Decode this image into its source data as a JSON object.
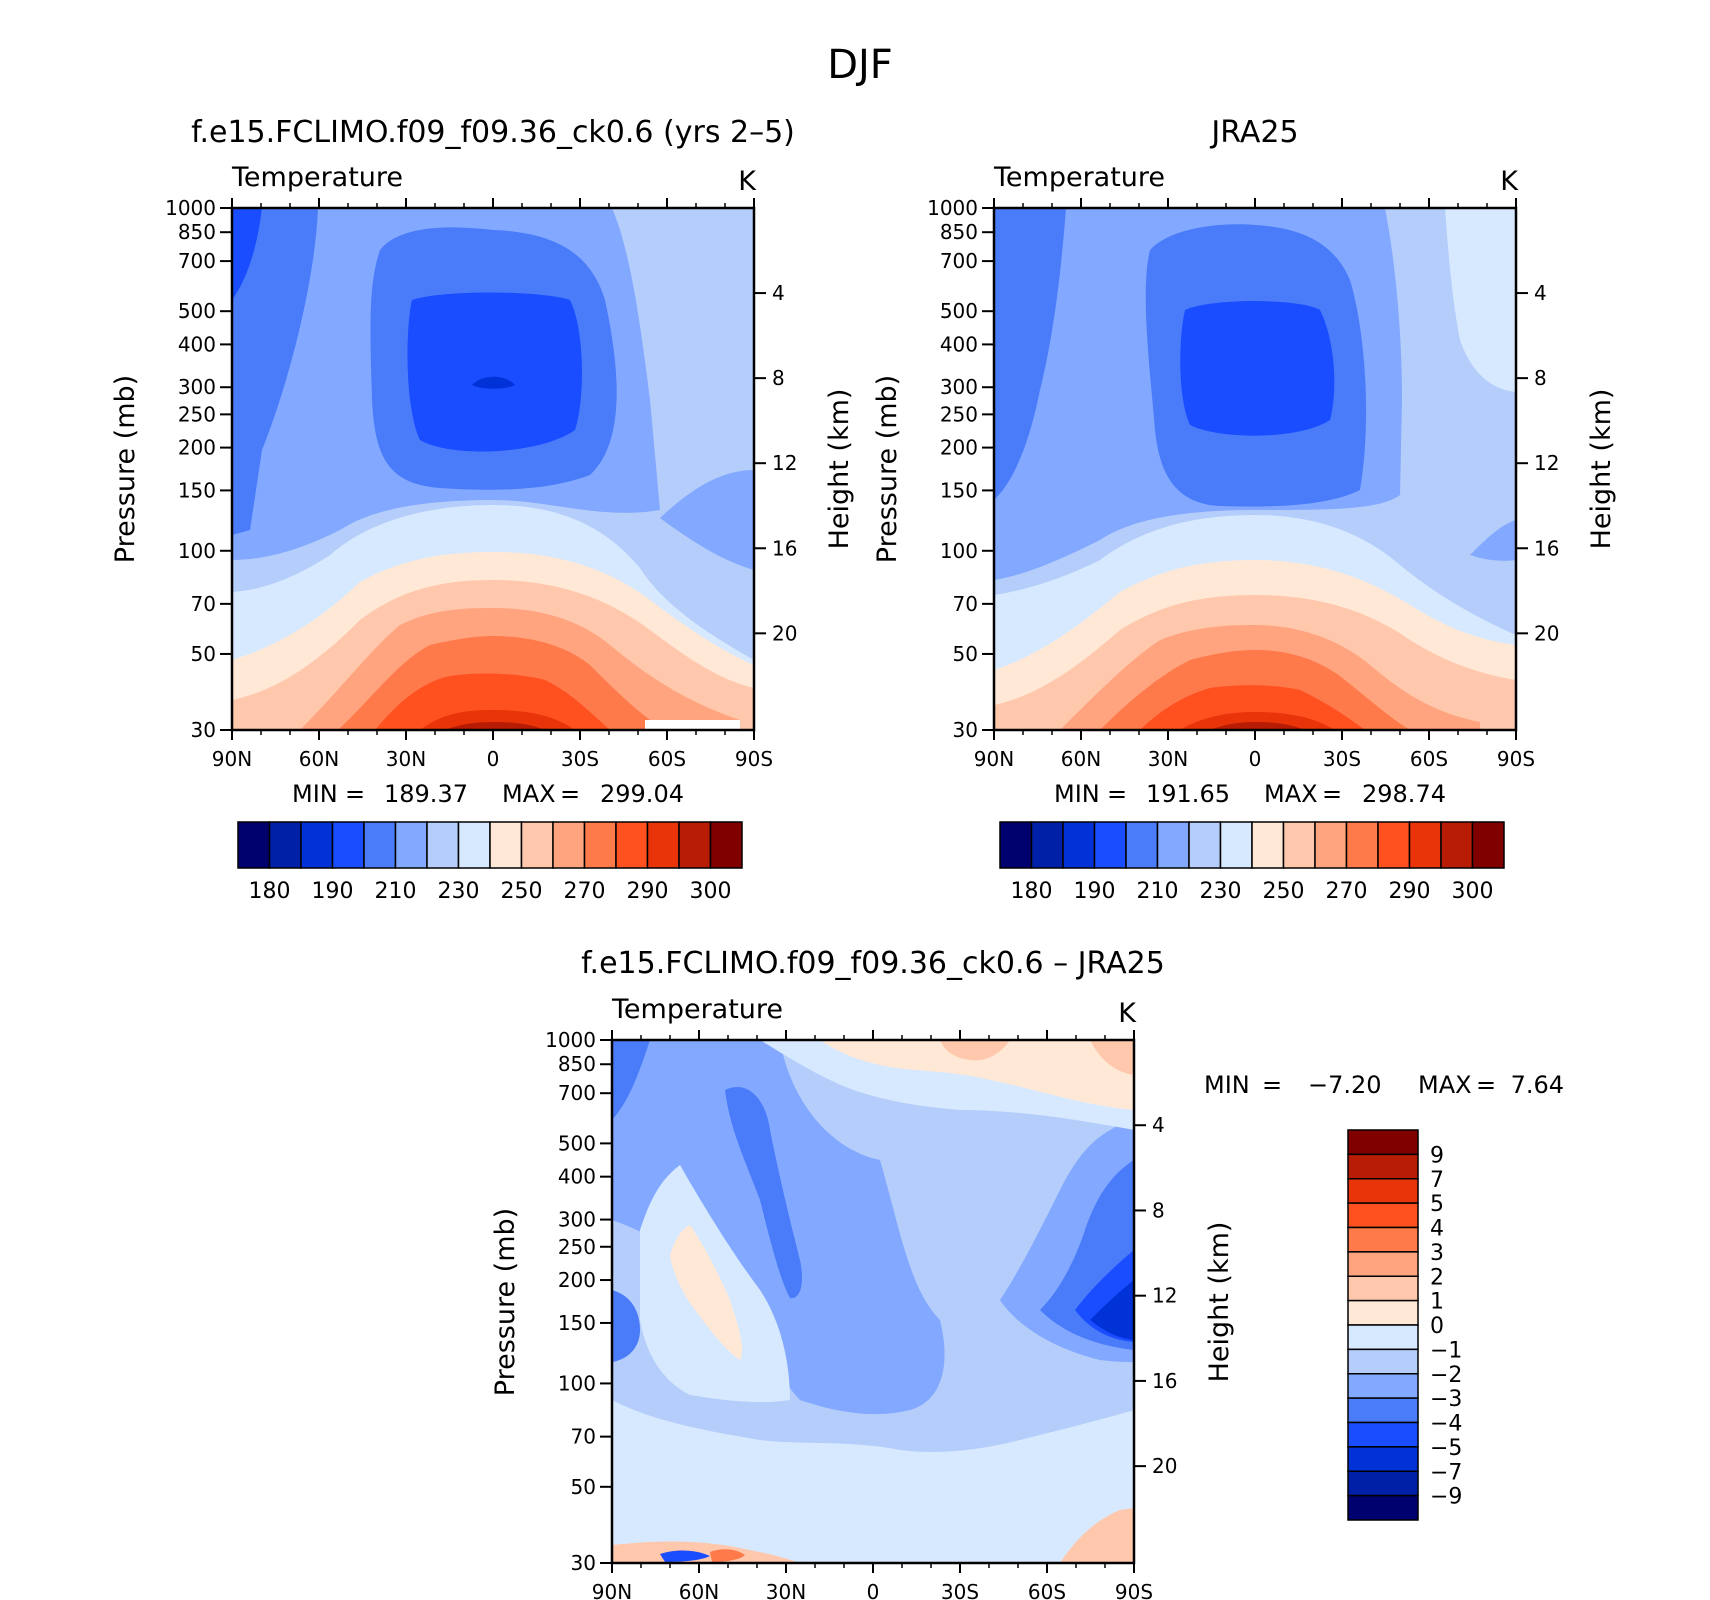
{
  "figure": {
    "title": "DJF"
  },
  "chart_data": [
    {
      "type": "heatmap",
      "title": "f.e15.FCLIMO.f09_f09.36_ck0.6 (yrs 2–5)",
      "variable": "Temperature",
      "units": "K",
      "xlabel": "",
      "ylabel": "Pressure (mb)",
      "y2label": "Height (km)",
      "x_ticks": [
        "90N",
        "60N",
        "30N",
        "0",
        "30S",
        "60S",
        "90S"
      ],
      "x_tick_lat": [
        90,
        60,
        30,
        0,
        -30,
        -60,
        -90
      ],
      "y_ticks": [
        "30",
        "50",
        "70",
        "100",
        "150",
        "200",
        "250",
        "300",
        "400",
        "500",
        "700",
        "850",
        "1000"
      ],
      "y_tick_values": [
        30,
        50,
        70,
        100,
        150,
        200,
        250,
        300,
        400,
        500,
        700,
        850,
        1000
      ],
      "y2_ticks": [
        "20",
        "16",
        "12",
        "8",
        "4"
      ],
      "y2_tick_values": [
        20,
        16,
        12,
        8,
        4
      ],
      "ylim": [
        1000,
        30
      ],
      "yscale": "log",
      "stats": {
        "min_label": "MIN",
        "min": "189.37",
        "max_label": "MAX",
        "max": "299.04"
      },
      "levels": [
        180,
        185,
        190,
        200,
        210,
        220,
        230,
        240,
        250,
        260,
        270,
        280,
        290,
        295,
        300
      ],
      "colorbar_labels": [
        "180",
        "190",
        "210",
        "230",
        "250",
        "270",
        "290",
        "300"
      ],
      "colorbar_orientation": "horizontal",
      "colors": [
        "#00006e",
        "#0020a8",
        "#0032d8",
        "#1a4dff",
        "#4a7cfa",
        "#82a8ff",
        "#b4cdfa",
        "#d7e9ff",
        "#ffe8d6",
        "#ffc8ac",
        "#ffa47e",
        "#ff7a4a",
        "#ff5020",
        "#e83408",
        "#b81c05",
        "#800000"
      ]
    },
    {
      "type": "heatmap",
      "title": "JRA25",
      "variable": "Temperature",
      "units": "K",
      "xlabel": "",
      "ylabel": "Pressure (mb)",
      "y2label": "Height (km)",
      "x_ticks": [
        "90N",
        "60N",
        "30N",
        "0",
        "30S",
        "60S",
        "90S"
      ],
      "x_tick_lat": [
        90,
        60,
        30,
        0,
        -30,
        -60,
        -90
      ],
      "y_ticks": [
        "30",
        "50",
        "70",
        "100",
        "150",
        "200",
        "250",
        "300",
        "400",
        "500",
        "700",
        "850",
        "1000"
      ],
      "y_tick_values": [
        30,
        50,
        70,
        100,
        150,
        200,
        250,
        300,
        400,
        500,
        700,
        850,
        1000
      ],
      "y2_ticks": [
        "20",
        "16",
        "12",
        "8",
        "4"
      ],
      "y2_tick_values": [
        20,
        16,
        12,
        8,
        4
      ],
      "ylim": [
        1000,
        30
      ],
      "yscale": "log",
      "stats": {
        "min_label": "MIN",
        "min": "191.65",
        "max_label": "MAX",
        "max": "298.74"
      },
      "levels": [
        180,
        185,
        190,
        200,
        210,
        220,
        230,
        240,
        250,
        260,
        270,
        280,
        290,
        295,
        300
      ],
      "colorbar_labels": [
        "180",
        "190",
        "210",
        "230",
        "250",
        "270",
        "290",
        "300"
      ],
      "colorbar_orientation": "horizontal",
      "colors": [
        "#00006e",
        "#0020a8",
        "#0032d8",
        "#1a4dff",
        "#4a7cfa",
        "#82a8ff",
        "#b4cdfa",
        "#d7e9ff",
        "#ffe8d6",
        "#ffc8ac",
        "#ffa47e",
        "#ff7a4a",
        "#ff5020",
        "#e83408",
        "#b81c05",
        "#800000"
      ]
    },
    {
      "type": "heatmap",
      "title": "f.e15.FCLIMO.f09_f09.36_ck0.6 – JRA25",
      "variable": "Temperature",
      "units": "K",
      "xlabel": "",
      "ylabel": "Pressure (mb)",
      "y2label": "Height (km)",
      "x_ticks": [
        "90N",
        "60N",
        "30N",
        "0",
        "30S",
        "60S",
        "90S"
      ],
      "x_tick_lat": [
        90,
        60,
        30,
        0,
        -30,
        -60,
        -90
      ],
      "y_ticks": [
        "30",
        "50",
        "70",
        "100",
        "150",
        "200",
        "250",
        "300",
        "400",
        "500",
        "700",
        "850",
        "1000"
      ],
      "y_tick_values": [
        30,
        50,
        70,
        100,
        150,
        200,
        250,
        300,
        400,
        500,
        700,
        850,
        1000
      ],
      "y2_ticks": [
        "20",
        "16",
        "12",
        "8",
        "4"
      ],
      "y2_tick_values": [
        20,
        16,
        12,
        8,
        4
      ],
      "ylim": [
        1000,
        30
      ],
      "yscale": "log",
      "stats": {
        "min_label": "MIN",
        "min": "−7.20",
        "max_label": "MAX",
        "max": "7.64"
      },
      "levels": [
        -9,
        -7,
        -5,
        -4,
        -3,
        -2,
        -1,
        0,
        1,
        2,
        3,
        4,
        5,
        7,
        9
      ],
      "colorbar_labels": [
        "9",
        "7",
        "5",
        "4",
        "3",
        "2",
        "1",
        "0",
        "−1",
        "−2",
        "−3",
        "−4",
        "−5",
        "−7",
        "−9"
      ],
      "colorbar_orientation": "vertical",
      "colors": [
        "#00006e",
        "#0020a8",
        "#0032d8",
        "#1a4dff",
        "#4a7cfa",
        "#82a8ff",
        "#b4cdfa",
        "#d7e9ff",
        "#ffe8d6",
        "#ffc8ac",
        "#ffa47e",
        "#ff7a4a",
        "#ff5020",
        "#e83408",
        "#b81c05",
        "#800000"
      ]
    }
  ]
}
